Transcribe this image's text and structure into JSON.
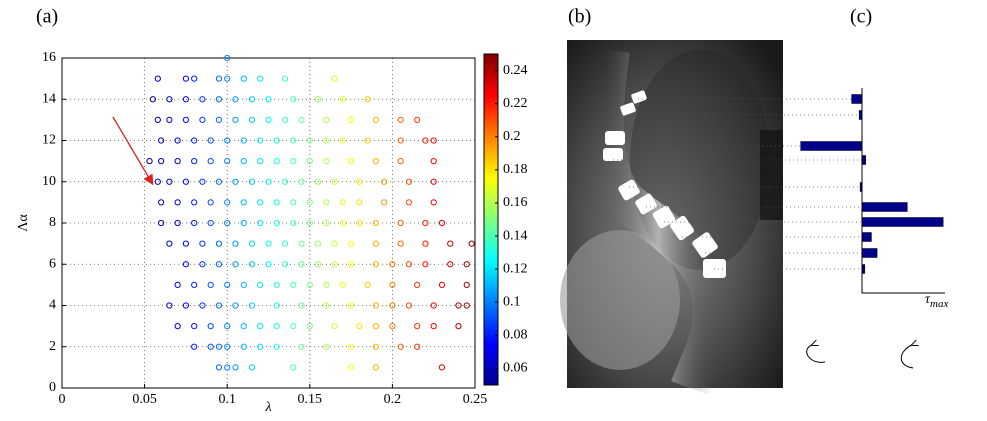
{
  "panel_labels": [
    "(a)",
    "(b)",
    "(c)"
  ],
  "chart_data": [
    {
      "type": "scatter",
      "x_label": "λ",
      "y_label": "Λα",
      "xlim": [
        0,
        0.25
      ],
      "ylim": [
        0,
        16
      ],
      "xticks": [
        0,
        0.05,
        0.1,
        0.15,
        0.2,
        0.25
      ],
      "yticks": [
        0,
        2,
        4,
        6,
        8,
        10,
        12,
        14,
        16
      ],
      "grid": true,
      "colormap": "jet",
      "clim": [
        0.05,
        0.25
      ],
      "colorbar_ticks": [
        0.06,
        0.08,
        0.1,
        0.12,
        0.14,
        0.16,
        0.18,
        0.2,
        0.22,
        0.24
      ],
      "x": [
        0.095,
        0.1,
        0.105,
        0.115,
        0.14,
        0.175,
        0.19,
        0.23,
        0.08,
        0.09,
        0.095,
        0.1,
        0.11,
        0.12,
        0.13,
        0.145,
        0.16,
        0.175,
        0.19,
        0.205,
        0.215,
        0.07,
        0.08,
        0.09,
        0.1,
        0.11,
        0.12,
        0.13,
        0.14,
        0.15,
        0.165,
        0.18,
        0.19,
        0.2,
        0.215,
        0.225,
        0.24,
        0.065,
        0.075,
        0.085,
        0.095,
        0.105,
        0.115,
        0.13,
        0.145,
        0.16,
        0.175,
        0.19,
        0.2,
        0.21,
        0.225,
        0.24,
        0.245,
        0.07,
        0.08,
        0.09,
        0.1,
        0.11,
        0.12,
        0.13,
        0.14,
        0.15,
        0.16,
        0.17,
        0.185,
        0.2,
        0.215,
        0.23,
        0.245,
        0.075,
        0.085,
        0.095,
        0.105,
        0.115,
        0.125,
        0.135,
        0.145,
        0.155,
        0.165,
        0.175,
        0.19,
        0.2,
        0.21,
        0.22,
        0.235,
        0.245,
        0.065,
        0.075,
        0.085,
        0.095,
        0.105,
        0.115,
        0.125,
        0.135,
        0.145,
        0.155,
        0.165,
        0.175,
        0.19,
        0.205,
        0.22,
        0.235,
        0.248,
        0.06,
        0.07,
        0.08,
        0.09,
        0.1,
        0.11,
        0.12,
        0.13,
        0.14,
        0.15,
        0.16,
        0.17,
        0.18,
        0.19,
        0.205,
        0.22,
        0.23,
        0.06,
        0.07,
        0.08,
        0.09,
        0.1,
        0.11,
        0.12,
        0.13,
        0.14,
        0.15,
        0.16,
        0.17,
        0.18,
        0.195,
        0.21,
        0.225,
        0.058,
        0.065,
        0.075,
        0.085,
        0.095,
        0.105,
        0.115,
        0.125,
        0.135,
        0.145,
        0.155,
        0.165,
        0.18,
        0.195,
        0.21,
        0.225,
        0.053,
        0.06,
        0.07,
        0.08,
        0.09,
        0.1,
        0.11,
        0.12,
        0.13,
        0.14,
        0.15,
        0.16,
        0.175,
        0.19,
        0.205,
        0.225,
        0.06,
        0.07,
        0.08,
        0.09,
        0.1,
        0.11,
        0.12,
        0.13,
        0.14,
        0.15,
        0.16,
        0.17,
        0.185,
        0.205,
        0.22,
        0.225,
        0.058,
        0.065,
        0.075,
        0.085,
        0.095,
        0.105,
        0.115,
        0.125,
        0.135,
        0.145,
        0.16,
        0.175,
        0.19,
        0.205,
        0.215,
        0.055,
        0.065,
        0.075,
        0.085,
        0.095,
        0.105,
        0.115,
        0.125,
        0.14,
        0.155,
        0.17,
        0.185,
        0.058,
        0.075,
        0.08,
        0.095,
        0.1,
        0.11,
        0.12,
        0.135,
        0.165,
        0.1
      ],
      "y": [
        1,
        1,
        1,
        1,
        1,
        1,
        1,
        1,
        2,
        2,
        2,
        2,
        2,
        2,
        2,
        2,
        2,
        2,
        2,
        2,
        2,
        3,
        3,
        3,
        3,
        3,
        3,
        3,
        3,
        3,
        3,
        3,
        3,
        3,
        3,
        3,
        3,
        4,
        4,
        4,
        4,
        4,
        4,
        4,
        4,
        4,
        4,
        4,
        4,
        4,
        4,
        4,
        4,
        5,
        5,
        5,
        5,
        5,
        5,
        5,
        5,
        5,
        5,
        5,
        5,
        5,
        5,
        5,
        5,
        6,
        6,
        6,
        6,
        6,
        6,
        6,
        6,
        6,
        6,
        6,
        6,
        6,
        6,
        6,
        6,
        6,
        7,
        7,
        7,
        7,
        7,
        7,
        7,
        7,
        7,
        7,
        7,
        7,
        7,
        7,
        7,
        7,
        7,
        8,
        8,
        8,
        8,
        8,
        8,
        8,
        8,
        8,
        8,
        8,
        8,
        8,
        8,
        8,
        8,
        8,
        9,
        9,
        9,
        9,
        9,
        9,
        9,
        9,
        9,
        9,
        9,
        9,
        9,
        9,
        9,
        9,
        10,
        10,
        10,
        10,
        10,
        10,
        10,
        10,
        10,
        10,
        10,
        10,
        10,
        10,
        10,
        10,
        11,
        11,
        11,
        11,
        11,
        11,
        11,
        11,
        11,
        11,
        11,
        11,
        11,
        11,
        11,
        11,
        12,
        12,
        12,
        12,
        12,
        12,
        12,
        12,
        12,
        12,
        12,
        12,
        12,
        12,
        12,
        12,
        13,
        13,
        13,
        13,
        13,
        13,
        13,
        13,
        13,
        13,
        13,
        13,
        13,
        13,
        13,
        14,
        14,
        14,
        14,
        14,
        14,
        14,
        14,
        14,
        14,
        14,
        14,
        15,
        15,
        15,
        15,
        15,
        15,
        15,
        15,
        15,
        16
      ]
    },
    {
      "type": "hbar",
      "x_label": "τ",
      "x_label_sub": "max",
      "color": "#00008b",
      "xlim": [
        -70,
        90
      ],
      "categories": [
        null,
        null,
        null,
        null,
        null,
        null,
        null,
        null,
        null,
        null
      ],
      "values": [
        -11,
        -3,
        -65,
        4,
        -2,
        48,
        86,
        10,
        16,
        3
      ]
    }
  ]
}
